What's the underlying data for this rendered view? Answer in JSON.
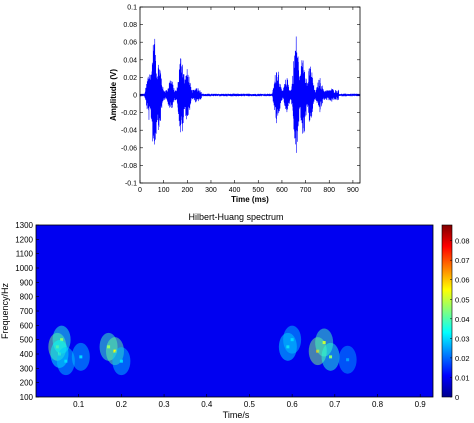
{
  "chart_data": [
    {
      "type": "line",
      "title": "",
      "xlabel": "Time (ms)",
      "ylabel": "Amplitude (V)",
      "xlim": [
        0,
        930
      ],
      "ylim": [
        -0.1,
        0.1
      ],
      "xticks": [
        0,
        100,
        200,
        300,
        400,
        500,
        600,
        700,
        800,
        900
      ],
      "yticks": [
        -0.1,
        -0.08,
        -0.06,
        -0.04,
        -0.02,
        0,
        0.02,
        0.04,
        0.06,
        0.08,
        0.1
      ],
      "xtick_labels": [
        "0",
        "100",
        "200",
        "300",
        "400",
        "500",
        "600",
        "700",
        "800",
        "900"
      ],
      "ytick_labels": [
        "-0.1",
        "-0.08",
        "-0.06",
        "-0.04",
        "-0.02",
        "0",
        "0.02",
        "0.04",
        "0.06",
        "0.08",
        "0.1"
      ],
      "grid": false,
      "line_color": "#0000ff",
      "bursts": [
        {
          "start": 20,
          "end": 260,
          "peaks": [
            {
              "t": 40,
              "amp": 0.03
            },
            {
              "t": 60,
              "amp": 0.066
            },
            {
              "t": 80,
              "amp": 0.04
            },
            {
              "t": 130,
              "amp": 0.02
            },
            {
              "t": 175,
              "amp": 0.05
            },
            {
              "t": 200,
              "amp": 0.03
            },
            {
              "t": 240,
              "amp": 0.01
            }
          ]
        },
        {
          "start": 560,
          "end": 840,
          "peaks": [
            {
              "t": 580,
              "amp": 0.035
            },
            {
              "t": 620,
              "amp": 0.02
            },
            {
              "t": 660,
              "amp": 0.07
            },
            {
              "t": 690,
              "amp": 0.05
            },
            {
              "t": 720,
              "amp": 0.035
            },
            {
              "t": 760,
              "amp": 0.02
            },
            {
              "t": 810,
              "amp": 0.008
            }
          ]
        }
      ]
    },
    {
      "type": "heatmap",
      "title": "Hilbert-Huang spectrum",
      "xlabel": "Time/s",
      "ylabel": "Frequency/Hz",
      "xlim": [
        0,
        0.93
      ],
      "ylim": [
        100,
        1300
      ],
      "xticks": [
        0.1,
        0.2,
        0.3,
        0.4,
        0.5,
        0.6,
        0.7,
        0.8,
        0.9
      ],
      "yticks": [
        100,
        200,
        300,
        400,
        500,
        600,
        700,
        800,
        900,
        1000,
        1100,
        1200,
        1300
      ],
      "xtick_labels": [
        "0.1",
        "0.2",
        "0.3",
        "0.4",
        "0.5",
        "0.6",
        "0.7",
        "0.8",
        "0.9"
      ],
      "ytick_labels": [
        "100",
        "200",
        "300",
        "400",
        "500",
        "600",
        "700",
        "800",
        "900",
        "1000",
        "1100",
        "1200",
        "1300"
      ],
      "colorbar": {
        "min": 0,
        "max": 0.088,
        "ticks": [
          0,
          0.01,
          0.02,
          0.03,
          0.04,
          0.05,
          0.06,
          0.07,
          0.08
        ],
        "tick_labels": [
          "0",
          "0.01",
          "0.02",
          "0.03",
          "0.04",
          "0.05",
          "0.06",
          "0.07",
          "0.08"
        ],
        "colormap": "jet"
      },
      "background_value": 0.001,
      "hotspots": [
        {
          "t": 0.05,
          "f": 450,
          "value": 0.06
        },
        {
          "t": 0.06,
          "f": 500,
          "value": 0.045
        },
        {
          "t": 0.055,
          "f": 400,
          "value": 0.04
        },
        {
          "t": 0.07,
          "f": 350,
          "value": 0.03
        },
        {
          "t": 0.105,
          "f": 380,
          "value": 0.03
        },
        {
          "t": 0.17,
          "f": 450,
          "value": 0.05
        },
        {
          "t": 0.185,
          "f": 420,
          "value": 0.055
        },
        {
          "t": 0.2,
          "f": 350,
          "value": 0.03
        },
        {
          "t": 0.59,
          "f": 450,
          "value": 0.035
        },
        {
          "t": 0.6,
          "f": 500,
          "value": 0.03
        },
        {
          "t": 0.66,
          "f": 420,
          "value": 0.06
        },
        {
          "t": 0.675,
          "f": 480,
          "value": 0.05
        },
        {
          "t": 0.69,
          "f": 380,
          "value": 0.045
        },
        {
          "t": 0.73,
          "f": 360,
          "value": 0.025
        }
      ]
    }
  ]
}
